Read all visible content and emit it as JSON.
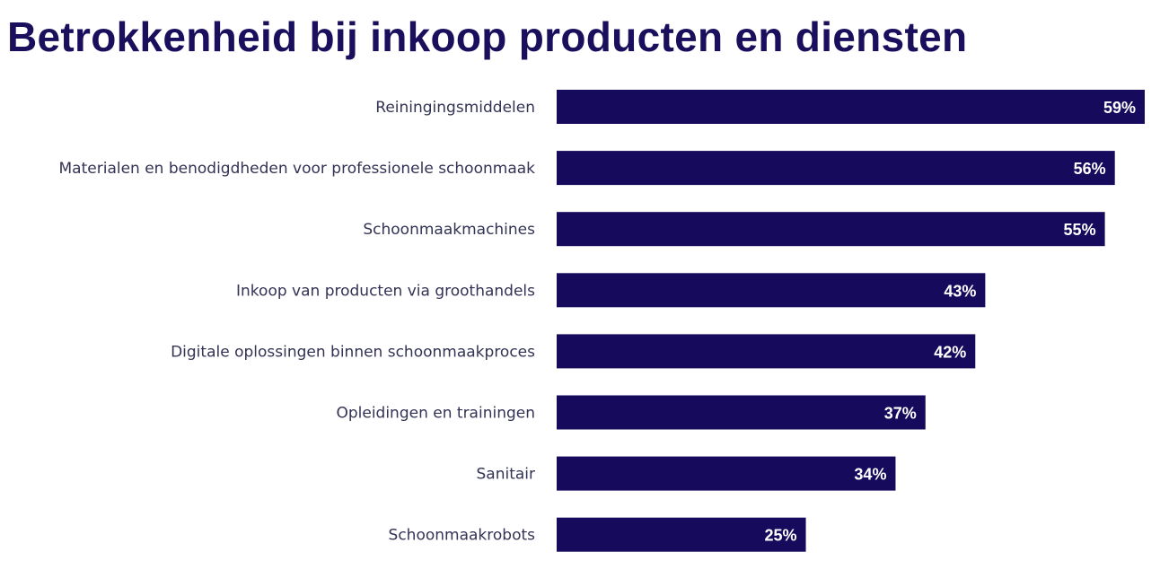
{
  "chart_data": {
    "type": "bar",
    "orientation": "horizontal",
    "title": "Betrokkenheid bij inkoop producten en diensten",
    "categories": [
      "Reiningingsmiddelen",
      "Materialen en benodigdheden voor professionele schoonmaak",
      "Schoonmaakmachines",
      "Inkoop van producten via groothandels",
      "Digitale oplossingen binnen schoonmaakproces",
      "Opleidingen en trainingen",
      "Sanitair",
      "Schoonmaakrobots"
    ],
    "values": [
      59,
      56,
      55,
      43,
      42,
      37,
      34,
      25
    ],
    "data_labels": [
      "59%",
      "56%",
      "55%",
      "43%",
      "42%",
      "37%",
      "34%",
      "25%"
    ],
    "xlim": [
      0,
      59
    ],
    "grid": false,
    "bar_color": "#160a5c",
    "title_color": "#1a0f5c"
  }
}
